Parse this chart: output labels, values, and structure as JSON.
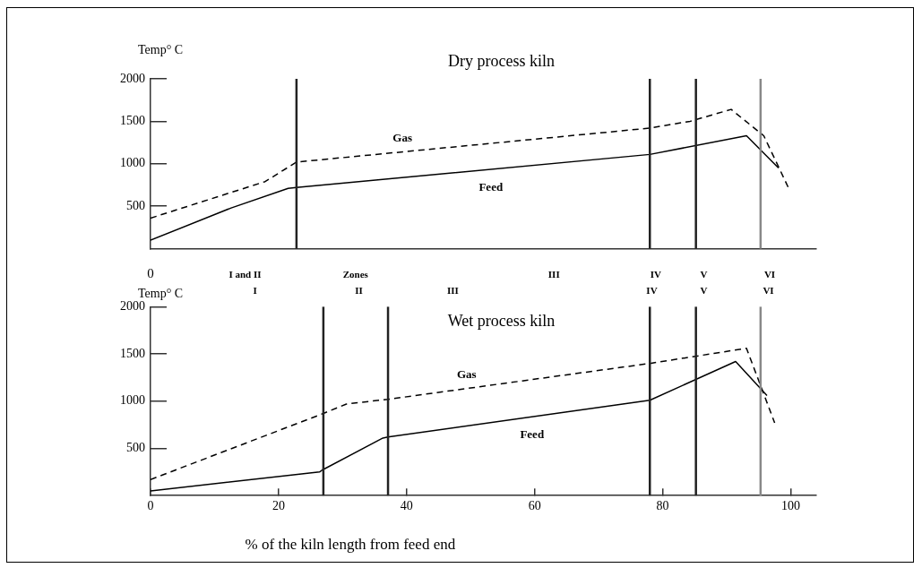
{
  "chart_data": [
    {
      "type": "line",
      "title": "Dry process kiln",
      "ylabel": "Temp° C",
      "grid": false,
      "legend": false,
      "marker": "none",
      "xlim": [
        0,
        104
      ],
      "ylim": [
        0,
        2000
      ],
      "yticks": [
        500,
        1000,
        1500,
        2000
      ],
      "tick_labels": "y",
      "annotations": [
        "0",
        "I and II",
        "Zones",
        "III",
        "IV",
        "V",
        "VI"
      ],
      "series": [
        {
          "name": "Gas",
          "color": "#000000",
          "line_style": "dashed",
          "x": [
            0,
            17.9,
            22.8,
            78,
            84.3,
            90.7,
            95.8,
            99.7
          ],
          "values": [
            360,
            790,
            1020,
            1420,
            1500,
            1640,
            1330,
            710
          ]
        },
        {
          "name": "Feed",
          "color": "#000000",
          "line_style": "solid",
          "x": [
            0,
            12.6,
            21.5,
            22.8,
            78,
            93.1,
            98.1
          ],
          "values": [
            100,
            480,
            710,
            720,
            1110,
            1330,
            950
          ]
        }
      ],
      "ref_lines": [
        {
          "axis": "x",
          "value": 22.8,
          "color": "#222222"
        },
        {
          "axis": "x",
          "value": 78,
          "color": "#222222"
        },
        {
          "axis": "x",
          "value": 85.2,
          "color": "#222222"
        },
        {
          "axis": "x",
          "value": 95.3,
          "color": "#888888"
        }
      ]
    },
    {
      "type": "line",
      "title": "Wet process kiln",
      "ylabel": "Temp° C",
      "xlabel": "% of the kiln length from feed end",
      "grid": false,
      "legend": false,
      "marker": "none",
      "xlim": [
        0,
        104
      ],
      "ylim": [
        0,
        2000
      ],
      "yticks": [
        500,
        1000,
        1500,
        2000
      ],
      "xticks": [
        0,
        20,
        40,
        60,
        80,
        100
      ],
      "annotations": [
        "I",
        "II",
        "III",
        "IV",
        "V",
        "VI"
      ],
      "series": [
        {
          "name": "Gas",
          "color": "#000000",
          "line_style": "dashed",
          "x": [
            0,
            27,
            30.6,
            37.1,
            78,
            93.1,
            97.5
          ],
          "values": [
            170,
            870,
            970,
            1020,
            1400,
            1560,
            770
          ]
        },
        {
          "name": "Feed",
          "color": "#000000",
          "line_style": "solid",
          "x": [
            0,
            26.4,
            26.8,
            36.3,
            37.1,
            78,
            91.4,
            96.3
          ],
          "values": [
            50,
            250,
            270,
            610,
            620,
            1010,
            1420,
            1060
          ]
        }
      ],
      "ref_lines": [
        {
          "axis": "x",
          "value": 27,
          "color": "#222222"
        },
        {
          "axis": "x",
          "value": 37.1,
          "color": "#222222"
        },
        {
          "axis": "x",
          "value": 78,
          "color": "#222222"
        },
        {
          "axis": "x",
          "value": 85.2,
          "color": "#222222"
        },
        {
          "axis": "x",
          "value": 95.3,
          "color": "#888888"
        }
      ]
    }
  ]
}
